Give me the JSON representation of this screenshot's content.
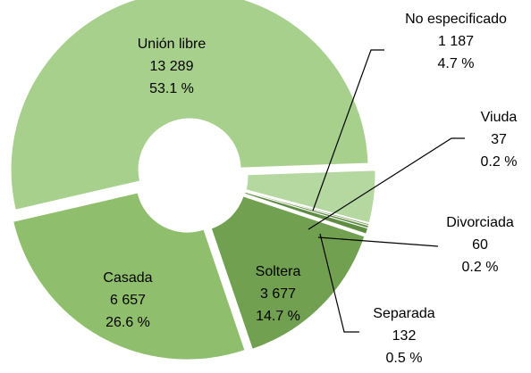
{
  "chart_data": {
    "type": "donut",
    "categories": [
      "Unión libre",
      "Casada",
      "Soltera",
      "Separada",
      "Divorciada",
      "Viuda",
      "No especificado"
    ],
    "values": [
      13289,
      6657,
      3677,
      132,
      60,
      37,
      1187
    ],
    "value_labels": [
      "13 289",
      "6 657",
      "3 677",
      "132",
      "60",
      "37",
      "1 187"
    ],
    "percentages": [
      53.1,
      26.6,
      14.7,
      0.5,
      0.2,
      0.2,
      4.7
    ],
    "percentage_labels": [
      "53.1 %",
      "26.6 %",
      "14.7 %",
      "0.5 %",
      "0.2 %",
      "0.2 %",
      "4.7 %"
    ],
    "colors": [
      "#a8d08d",
      "#8fbf6c",
      "#70a050",
      "#5e8c42",
      "#5e8c42",
      "#5e8c42",
      "#b4d89f"
    ]
  }
}
